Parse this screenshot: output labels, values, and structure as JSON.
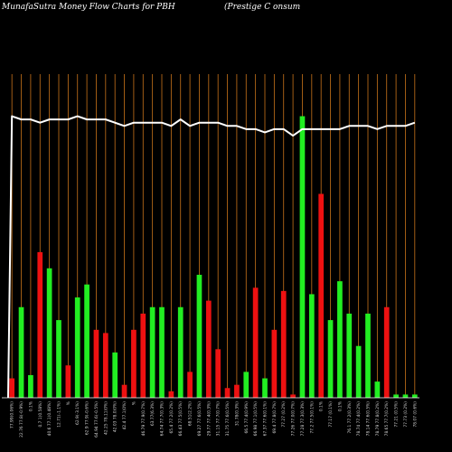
{
  "title": "MunafaSutra  Money Flow  Charts for PBH",
  "subtitle": "(Prestige     C                              onsum",
  "colors": {
    "background": "#000000",
    "grid": "#c8731a",
    "up": "#22ee22",
    "down": "#ee1111",
    "price_line": "#ffffff",
    "axis": "#ffffff"
  },
  "chart_data": {
    "type": "bar",
    "grid": "vertical",
    "ylim": [
      0,
      100
    ],
    "categories": [
      "77.99(0.06%)",
      "22.76 77.8(-0.9%)",
      "0.1%",
      "0.7 1(0.58%)",
      "40.6 77.1(0.48%)",
      "12.71(-1.1%)",
      "%",
      "62.9(-3.1%)",
      "62.9 77.9(-0.6%)",
      "64.94 77.6(-0.5%)",
      "42.25 78.11(0%)",
      "42.03 78.0(0%)",
      "42.4 77.1(0%)",
      "%",
      "46.79 77.9(0.7%)",
      "63.77(6.3%)",
      "64.74 77.7(0.3%)",
      "65.4 77.2(0.2%)",
      "66.43 77.5(0.5%)",
      "68.51(2.2%)",
      "69.27 77.6(0.5%)",
      "29.77 77.4(0.3%)",
      "31.15 77.7(0.7%)",
      "31.75 77.6(0.5%)",
      "31.78(0.3%)",
      "66.5 77.4(0.9%)",
      "66.98 77.1(0.5%)",
      "67.37 77.6(0.1%)",
      "69.4 77.8(0.7%)",
      "77.27 (0.2%)",
      "77.26 77.0(0.7%)",
      "77.28 77.3(0.3%)",
      "77.2 77.5(0.1%)",
      "0.1%",
      "77.17 (0.1%)",
      "0.1%",
      "76.1 77.2(0.3%)",
      "78.74 77.4(0.2%)",
      "78.14 77.6(0.5%)",
      "78.79 77.8(0.2%)",
      "78.65 77.7(0.2%)",
      "77.21 (0.5%)",
      "77.73 (0.2%)",
      "78.07 (0.6%)"
    ],
    "series": [
      {
        "colors": [
          "down",
          "up",
          "up",
          "down",
          "up",
          "up",
          "down",
          "up",
          "up",
          "down",
          "down",
          "up",
          "down",
          "down",
          "down",
          "up",
          "up",
          "down",
          "up",
          "down",
          "up",
          "down",
          "down",
          "down",
          "down",
          "up",
          "down",
          "up",
          "down",
          "down",
          "down",
          "up",
          "up",
          "down",
          "up",
          "up",
          "up",
          "up",
          "up",
          "up",
          "down",
          "up",
          "up",
          "up"
        ],
        "values": [
          6,
          28,
          7,
          45,
          40,
          24,
          10,
          31,
          35,
          21,
          20,
          14,
          4,
          21,
          26,
          28,
          28,
          2,
          28,
          8,
          38,
          30,
          15,
          3,
          4,
          8,
          34,
          6,
          21,
          33,
          1,
          87,
          32,
          63,
          24,
          36,
          26,
          16,
          26,
          5,
          28,
          1,
          1,
          1
        ]
      },
      {
        "type": "line",
        "values": [
          87,
          86,
          86,
          85,
          86,
          86,
          86,
          87,
          86,
          86,
          86,
          85,
          84,
          85,
          85,
          85,
          85,
          84,
          86,
          84,
          85,
          85,
          85,
          84,
          84,
          83,
          83,
          82,
          83,
          83,
          81,
          83,
          83,
          83,
          83,
          83,
          84,
          84,
          84,
          83,
          84,
          84,
          84,
          85
        ]
      }
    ]
  }
}
